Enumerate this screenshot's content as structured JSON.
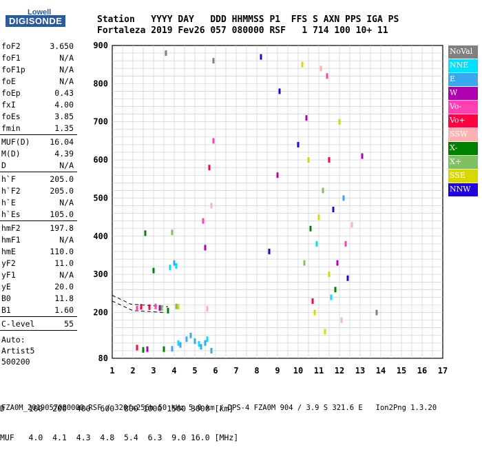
{
  "logo": {
    "top": "Lowell",
    "main": "DIGISONDE"
  },
  "header": {
    "line1": "Station   YYYY DAY   DDD HHMMSS P1  FFS S AXN PPS IGA PS",
    "line2": "Fortaleza 2019 Fev26 057 080000 RSF   1 714 100 10+ 11"
  },
  "parameters": [
    [
      {
        "label": "foF2",
        "value": "3.650"
      },
      {
        "label": "foF1",
        "value": "N/A"
      },
      {
        "label": "foF1p",
        "value": "N/A"
      },
      {
        "label": "foE",
        "value": "N/A"
      },
      {
        "label": "foEp",
        "value": "0.43"
      },
      {
        "label": "fxI",
        "value": "4.00"
      },
      {
        "label": "foEs",
        "value": "3.85"
      },
      {
        "label": "fmin",
        "value": "1.35"
      }
    ],
    [
      {
        "label": "MUF(D)",
        "value": "16.04"
      },
      {
        "label": "M(D)",
        "value": "4.39"
      },
      {
        "label": "D",
        "value": "N/A"
      }
    ],
    [
      {
        "label": "h`F",
        "value": "205.0"
      },
      {
        "label": "h`F2",
        "value": "205.0"
      },
      {
        "label": "h`E",
        "value": "N/A"
      },
      {
        "label": "h`Es",
        "value": "105.0"
      }
    ],
    [
      {
        "label": "hmF2",
        "value": "197.8"
      },
      {
        "label": "hmF1",
        "value": "N/A"
      },
      {
        "label": "hmE",
        "value": "110.0"
      },
      {
        "label": "yF2",
        "value": "11.0"
      },
      {
        "label": "yF1",
        "value": "N/A"
      },
      {
        "label": "yE",
        "value": "20.0"
      },
      {
        "label": "B0",
        "value": "11.8"
      },
      {
        "label": "B1",
        "value": "1.60"
      }
    ],
    [
      {
        "label": "C-level",
        "value": "55"
      }
    ]
  ],
  "auto_info": [
    "Auto:",
    "Artist5",
    "500200"
  ],
  "legend": [
    {
      "label": "NoVal",
      "color": "#808080"
    },
    {
      "label": "NNE",
      "color": "#00e0ff"
    },
    {
      "label": "E",
      "color": "#3aa8f0"
    },
    {
      "label": "W",
      "color": "#b000b0"
    },
    {
      "label": "Vo-",
      "color": "#ff40b0"
    },
    {
      "label": "Vo+",
      "color": "#ff0040"
    },
    {
      "label": "SSW",
      "color": "#ffb0b0"
    },
    {
      "label": "X-",
      "color": "#008000"
    },
    {
      "label": "X+",
      "color": "#80c060"
    },
    {
      "label": "SSE",
      "color": "#d8d800"
    },
    {
      "label": "NNW",
      "color": "#2000e0"
    }
  ],
  "footer": {
    "line1": "D     100  200  400  600  800 1000 1500 3000 [km]",
    "line2": "MUF   4.0  4.1  4.3  4.8  5.4  6.3  9.0 16.0 [MHz]",
    "filename": "FZA0M_2019057080000.RSF / 320fx256h 50 kHz 5.0 km / DPS-4 FZA0M 904 / 3.9 S 321.6 E   Ion2Png 1.3.20"
  },
  "chart_data": {
    "type": "scatter",
    "title": "",
    "xlabel": "",
    "ylabel": "",
    "x_ticks": [
      1,
      2,
      3,
      4,
      5,
      6,
      7,
      8,
      9,
      10,
      11,
      12,
      13,
      14,
      15,
      16,
      17
    ],
    "y_ticks": [
      80,
      200,
      300,
      400,
      500,
      600,
      700,
      800,
      900
    ],
    "xlim": [
      1,
      17
    ],
    "ylim": [
      80,
      900
    ],
    "grid": true,
    "legend_position": "right",
    "series": [
      {
        "name": "SSE",
        "values": [
          [
            10.2,
            850
          ],
          [
            10.5,
            600
          ],
          [
            11.0,
            450
          ],
          [
            11.5,
            300
          ],
          [
            10.8,
            200
          ],
          [
            12.0,
            700
          ],
          [
            11.3,
            150
          ],
          [
            4.2,
            215
          ]
        ]
      },
      {
        "name": "E",
        "values": [
          [
            4.3,
            115
          ],
          [
            4.6,
            130
          ],
          [
            5.0,
            125
          ],
          [
            5.3,
            110
          ],
          [
            3.9,
            105
          ],
          [
            4.8,
            140
          ],
          [
            5.5,
            120
          ],
          [
            5.8,
            100
          ],
          [
            4.0,
            330
          ],
          [
            12.2,
            500
          ]
        ]
      },
      {
        "name": "NNE",
        "values": [
          [
            4.2,
            120
          ],
          [
            5.2,
            118
          ],
          [
            5.6,
            130
          ],
          [
            3.8,
            318
          ],
          [
            4.1,
            322
          ],
          [
            10.9,
            380
          ],
          [
            11.6,
            240
          ]
        ]
      },
      {
        "name": "X-",
        "values": [
          [
            3.7,
            205
          ],
          [
            3.0,
            310
          ],
          [
            2.6,
            408
          ],
          [
            3.5,
            104
          ],
          [
            2.5,
            102
          ],
          [
            10.6,
            420
          ],
          [
            11.8,
            260
          ]
        ]
      },
      {
        "name": "X+",
        "values": [
          [
            3.4,
            212
          ],
          [
            3.9,
            410
          ],
          [
            4.1,
            216
          ],
          [
            10.3,
            330
          ],
          [
            11.2,
            520
          ]
        ]
      },
      {
        "name": "Vo+",
        "values": [
          [
            2.4,
            215
          ],
          [
            2.8,
            214
          ],
          [
            2.2,
            108
          ],
          [
            5.7,
            580
          ],
          [
            11.5,
            600
          ],
          [
            10.7,
            230
          ]
        ]
      },
      {
        "name": "Vo-",
        "values": [
          [
            2.2,
            210
          ],
          [
            3.1,
            216
          ],
          [
            5.9,
            650
          ],
          [
            5.4,
            440
          ],
          [
            11.4,
            820
          ],
          [
            12.3,
            380
          ]
        ]
      },
      {
        "name": "W",
        "values": [
          [
            2.7,
            104
          ],
          [
            3.3,
            212
          ],
          [
            5.5,
            370
          ],
          [
            9.0,
            560
          ],
          [
            10.4,
            710
          ],
          [
            11.9,
            330
          ],
          [
            13.1,
            610
          ]
        ]
      },
      {
        "name": "SSW",
        "values": [
          [
            5.6,
            210
          ],
          [
            5.8,
            480
          ],
          [
            11.1,
            840
          ],
          [
            12.1,
            180
          ],
          [
            12.6,
            430
          ]
        ]
      },
      {
        "name": "NNW",
        "values": [
          [
            8.2,
            870
          ],
          [
            9.1,
            780
          ],
          [
            10.0,
            640
          ],
          [
            11.7,
            470
          ],
          [
            12.4,
            290
          ],
          [
            8.6,
            360
          ]
        ]
      },
      {
        "name": "NoVal",
        "values": [
          [
            3.6,
            880
          ],
          [
            5.9,
            860
          ],
          [
            13.8,
            200
          ]
        ]
      }
    ],
    "traces": [
      {
        "name": "trace-low",
        "points": [
          [
            1,
            230
          ],
          [
            2.0,
            205
          ],
          [
            3.6,
            200
          ]
        ]
      },
      {
        "name": "trace-high",
        "points": [
          [
            1,
            245
          ],
          [
            1.9,
            222
          ],
          [
            3.7,
            215
          ]
        ]
      }
    ]
  }
}
